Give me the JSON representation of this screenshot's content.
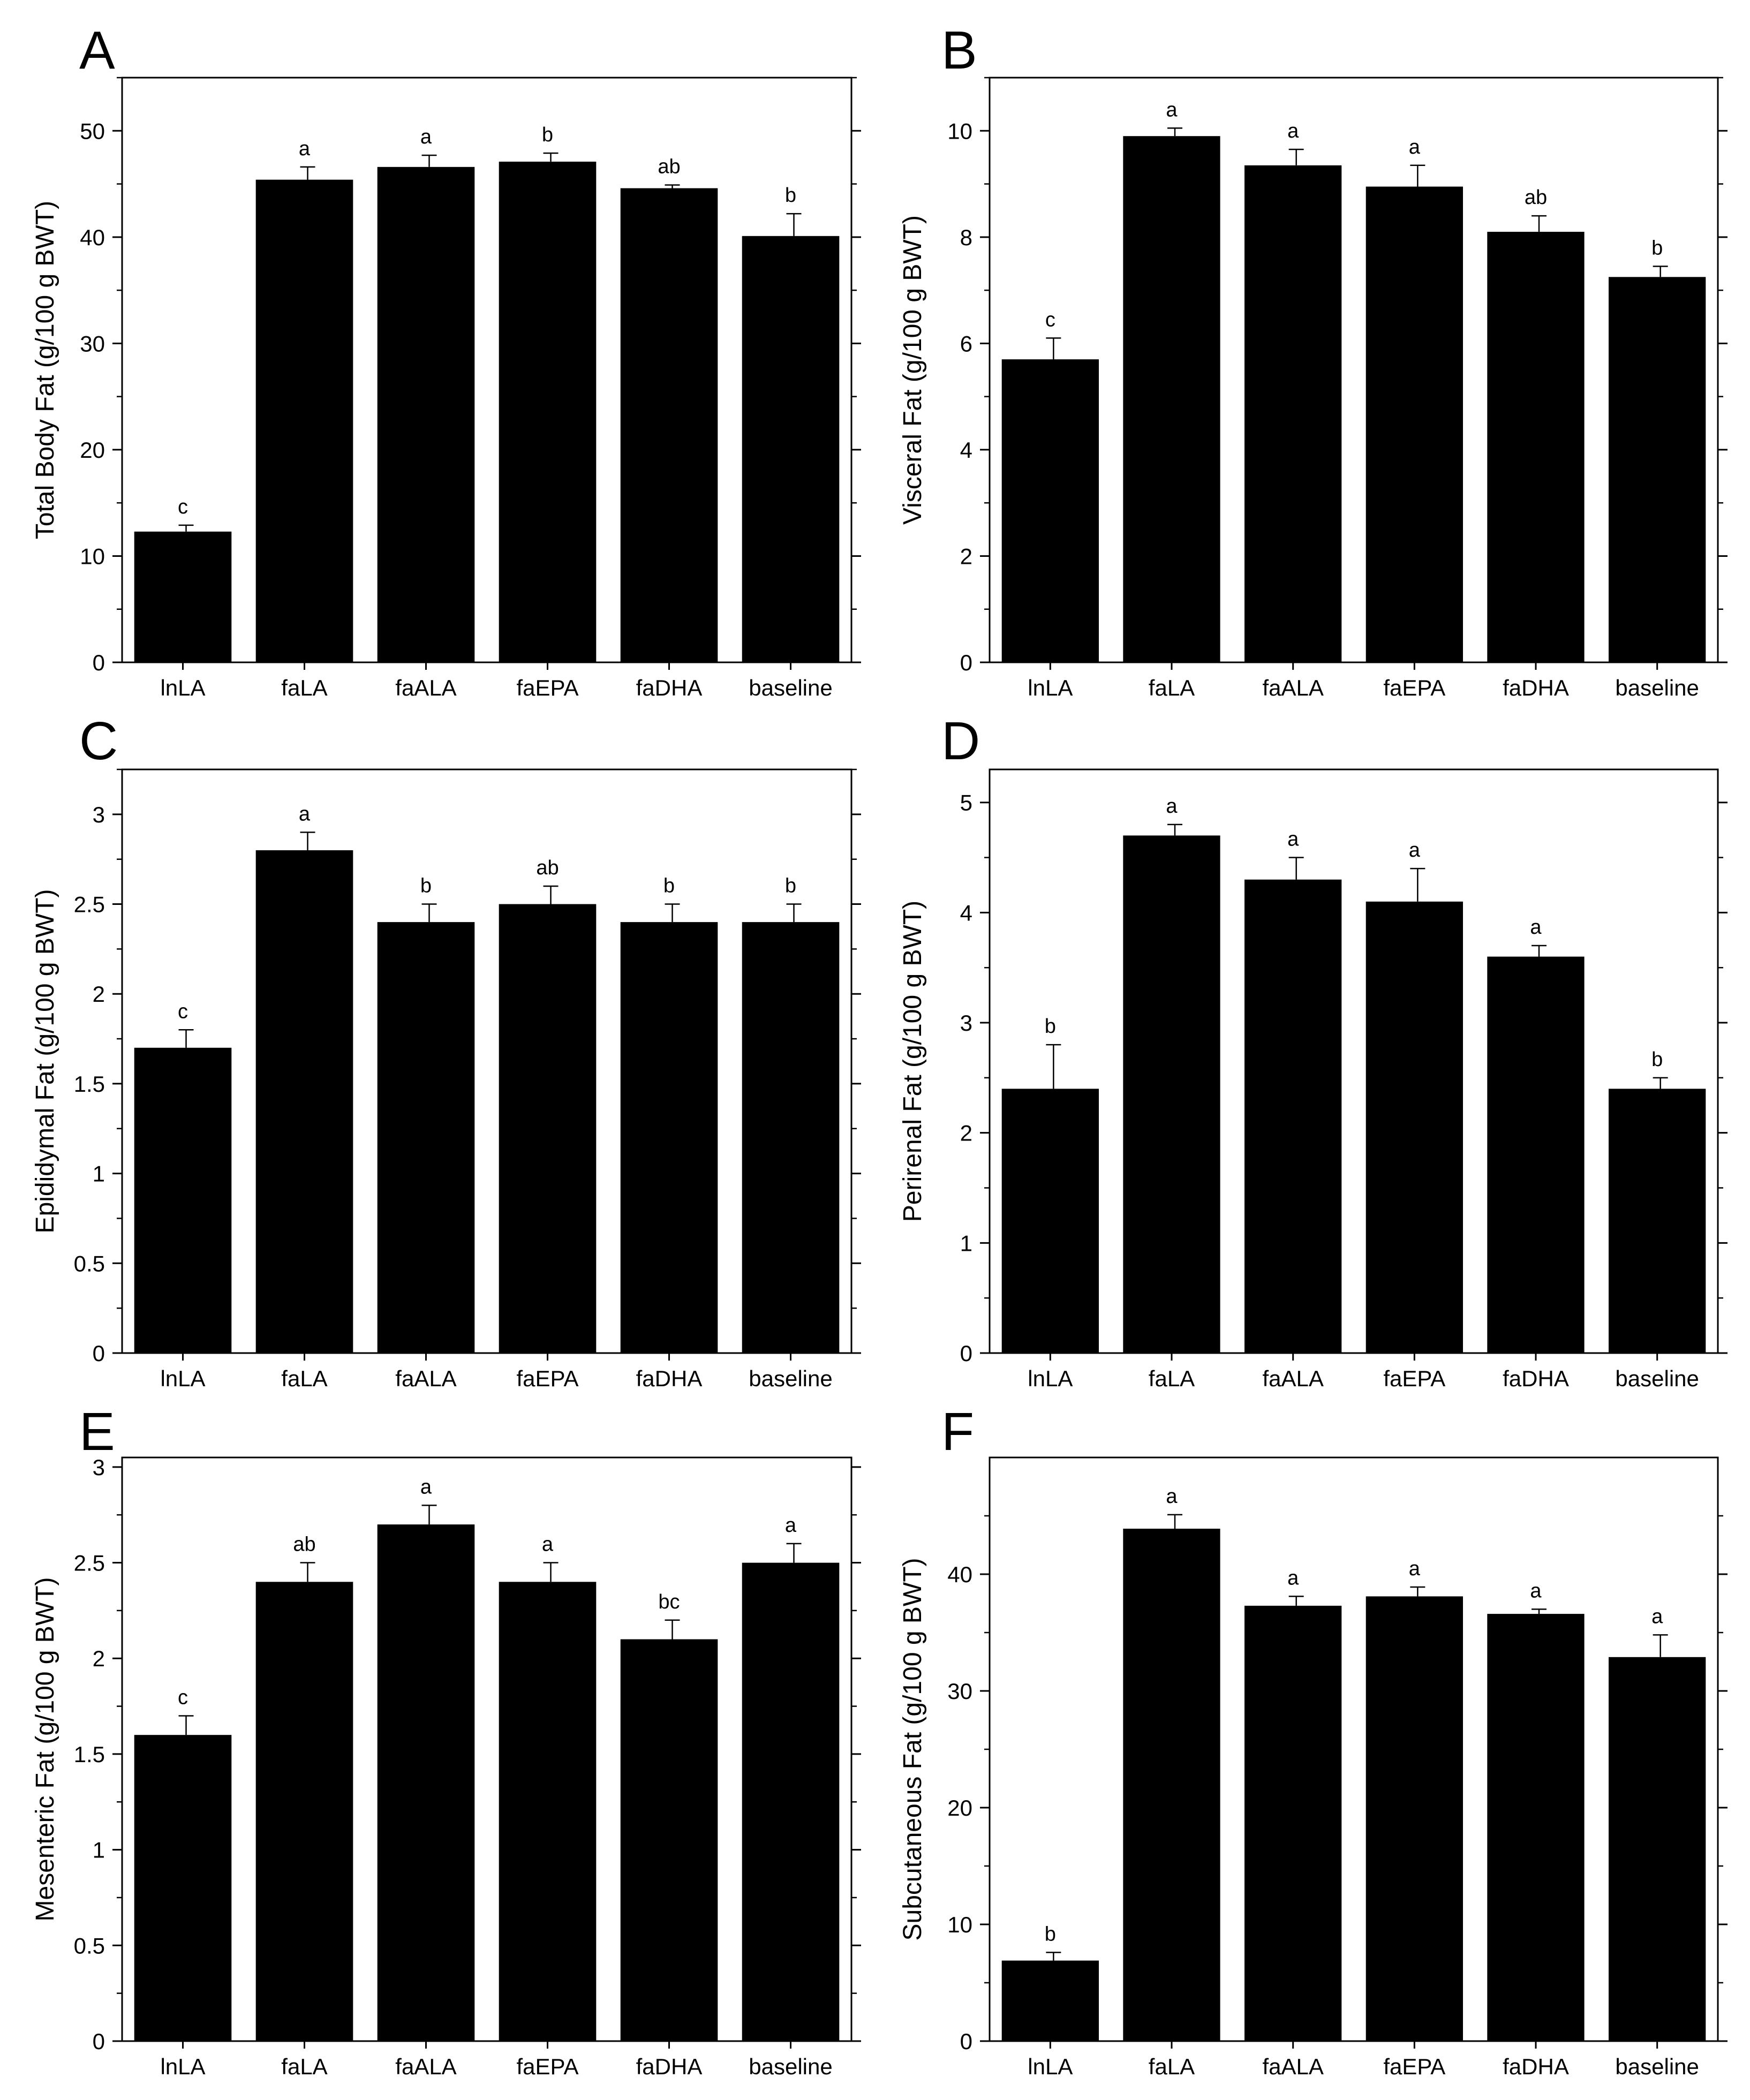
{
  "chart_data": [
    {
      "panel": "A",
      "type": "bar",
      "categories": [
        "lnLA",
        "faLA",
        "faALA",
        "faEPA",
        "faDHA",
        "baseline"
      ],
      "values": [
        12.3,
        45.4,
        46.6,
        47.1,
        44.6,
        40.1
      ],
      "errors": [
        0.6,
        1.2,
        1.1,
        0.8,
        0.3,
        2.1
      ],
      "letters": [
        "c",
        "a",
        "a",
        "b",
        "ab",
        "b"
      ],
      "ylabel": "Total Body Fat (g/100 g BWT)",
      "ylim": [
        0,
        55
      ],
      "yticks": [
        0,
        10,
        20,
        30,
        40,
        50
      ],
      "ytick_labels": [
        "0",
        "10",
        "20",
        "30",
        "40",
        "50"
      ]
    },
    {
      "panel": "B",
      "type": "bar",
      "categories": [
        "lnLA",
        "faLA",
        "faALA",
        "faEPA",
        "faDHA",
        "baseline"
      ],
      "values": [
        5.7,
        9.9,
        9.35,
        8.95,
        8.1,
        7.25
      ],
      "errors": [
        0.4,
        0.15,
        0.3,
        0.4,
        0.3,
        0.2
      ],
      "letters": [
        "c",
        "a",
        "a",
        "a",
        "ab",
        "b"
      ],
      "ylabel": "Visceral Fat (g/100 g BWT)",
      "ylim": [
        0,
        11
      ],
      "yticks": [
        0,
        2,
        4,
        6,
        8,
        10
      ],
      "ytick_labels": [
        "0",
        "2",
        "4",
        "6",
        "8",
        "10"
      ]
    },
    {
      "panel": "C",
      "type": "bar",
      "categories": [
        "lnLA",
        "faLA",
        "faALA",
        "faEPA",
        "faDHA",
        "baseline"
      ],
      "values": [
        1.7,
        2.8,
        2.4,
        2.5,
        2.4,
        2.4
      ],
      "errors": [
        0.1,
        0.1,
        0.1,
        0.1,
        0.1,
        0.1
      ],
      "letters": [
        "c",
        "a",
        "b",
        "ab",
        "b",
        "b"
      ],
      "ylabel": "Epididymal Fat (g/100 g BWT)",
      "ylim": [
        0,
        3.25
      ],
      "yticks": [
        0,
        0.5,
        1,
        1.5,
        2,
        2.5,
        3
      ],
      "ytick_labels": [
        "0",
        "0.5",
        "1",
        "1.5",
        "2",
        "2.5",
        "3"
      ]
    },
    {
      "panel": "D",
      "type": "bar",
      "categories": [
        "lnLA",
        "faLA",
        "faALA",
        "faEPA",
        "faDHA",
        "baseline"
      ],
      "values": [
        2.4,
        4.7,
        4.3,
        4.1,
        3.6,
        2.4
      ],
      "errors": [
        0.4,
        0.1,
        0.2,
        0.3,
        0.1,
        0.1
      ],
      "letters": [
        "b",
        "a",
        "a",
        "a",
        "a",
        "b"
      ],
      "ylabel": "Perirenal Fat (g/100 g  BWT)",
      "ylim": [
        0,
        5.3
      ],
      "yticks": [
        0,
        1,
        2,
        3,
        4,
        5
      ],
      "ytick_labels": [
        "0",
        "1",
        "2",
        "3",
        "4",
        "5"
      ]
    },
    {
      "panel": "E",
      "type": "bar",
      "categories": [
        "lnLA",
        "faLA",
        "faALA",
        "faEPA",
        "faDHA",
        "baseline"
      ],
      "values": [
        1.6,
        2.4,
        2.7,
        2.4,
        2.1,
        2.5
      ],
      "errors": [
        0.1,
        0.1,
        0.1,
        0.1,
        0.1,
        0.1
      ],
      "letters": [
        "c",
        "ab",
        "a",
        "a",
        "bc",
        "a"
      ],
      "ylabel": "Mesenteric Fat (g/100 g BWT)",
      "ylim": [
        0,
        3.05
      ],
      "yticks": [
        0,
        0.5,
        1,
        1.5,
        2,
        2.5,
        3
      ],
      "ytick_labels": [
        "0",
        "0.5",
        "1",
        "1.5",
        "2",
        "2.5",
        "3"
      ]
    },
    {
      "panel": "F",
      "type": "bar",
      "categories": [
        "lnLA",
        "faLA",
        "faALA",
        "faEPA",
        "faDHA",
        "baseline"
      ],
      "values": [
        6.9,
        43.9,
        37.3,
        38.1,
        36.6,
        32.9
      ],
      "errors": [
        0.7,
        1.2,
        0.8,
        0.8,
        0.4,
        1.9
      ],
      "letters": [
        "b",
        "a",
        "a",
        "a",
        "a",
        "a"
      ],
      "ylabel": "Subcutaneous Fat (g/100 g BWT)",
      "ylim": [
        0,
        50
      ],
      "yticks": [
        0,
        10,
        20,
        30,
        40
      ],
      "ytick_labels": [
        "0",
        "10",
        "20",
        "30",
        "40"
      ]
    }
  ]
}
